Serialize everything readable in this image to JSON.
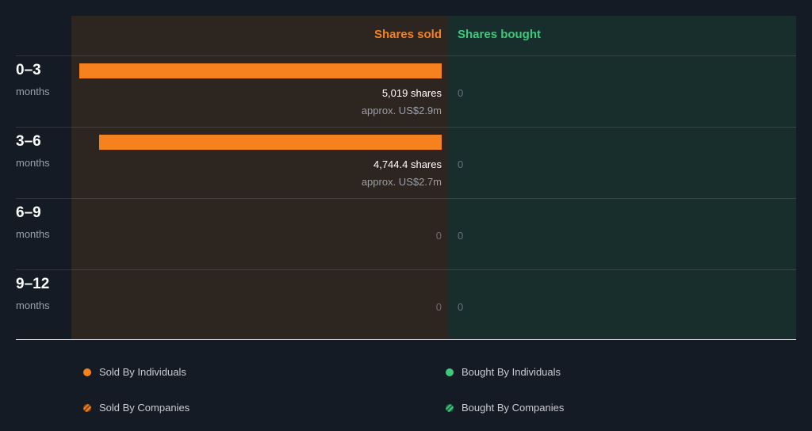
{
  "headers": {
    "sold": "Shares sold",
    "bought": "Shares bought"
  },
  "colors": {
    "sold": "#f6821f",
    "bought": "#3cc97a"
  },
  "chart_data": {
    "type": "bar",
    "categories": [
      "0–3 months",
      "3–6 months",
      "6–9 months",
      "9–12 months"
    ],
    "series": [
      {
        "name": "Shares sold",
        "values": [
          5019,
          4744.4,
          0,
          0
        ]
      },
      {
        "name": "Shares bought",
        "values": [
          0,
          0,
          0,
          0
        ]
      }
    ],
    "xlim": [
      0,
      5019
    ]
  },
  "rows": [
    {
      "period": "0–3",
      "unit": "months",
      "sold_label": "5,019 shares",
      "sold_value_label": "approx. US$2.9m",
      "bought_label": "0"
    },
    {
      "period": "3–6",
      "unit": "months",
      "sold_label": "4,744.4 shares",
      "sold_value_label": "approx. US$2.7m",
      "bought_label": "0"
    },
    {
      "period": "6–9",
      "unit": "months",
      "sold_label": "0",
      "bought_label": "0"
    },
    {
      "period": "9–12",
      "unit": "months",
      "sold_label": "0",
      "bought_label": "0"
    }
  ],
  "legend": {
    "sold_individuals": "Sold By Individuals",
    "sold_companies": "Sold By Companies",
    "bought_individuals": "Bought By Individuals",
    "bought_companies": "Bought By Companies"
  }
}
